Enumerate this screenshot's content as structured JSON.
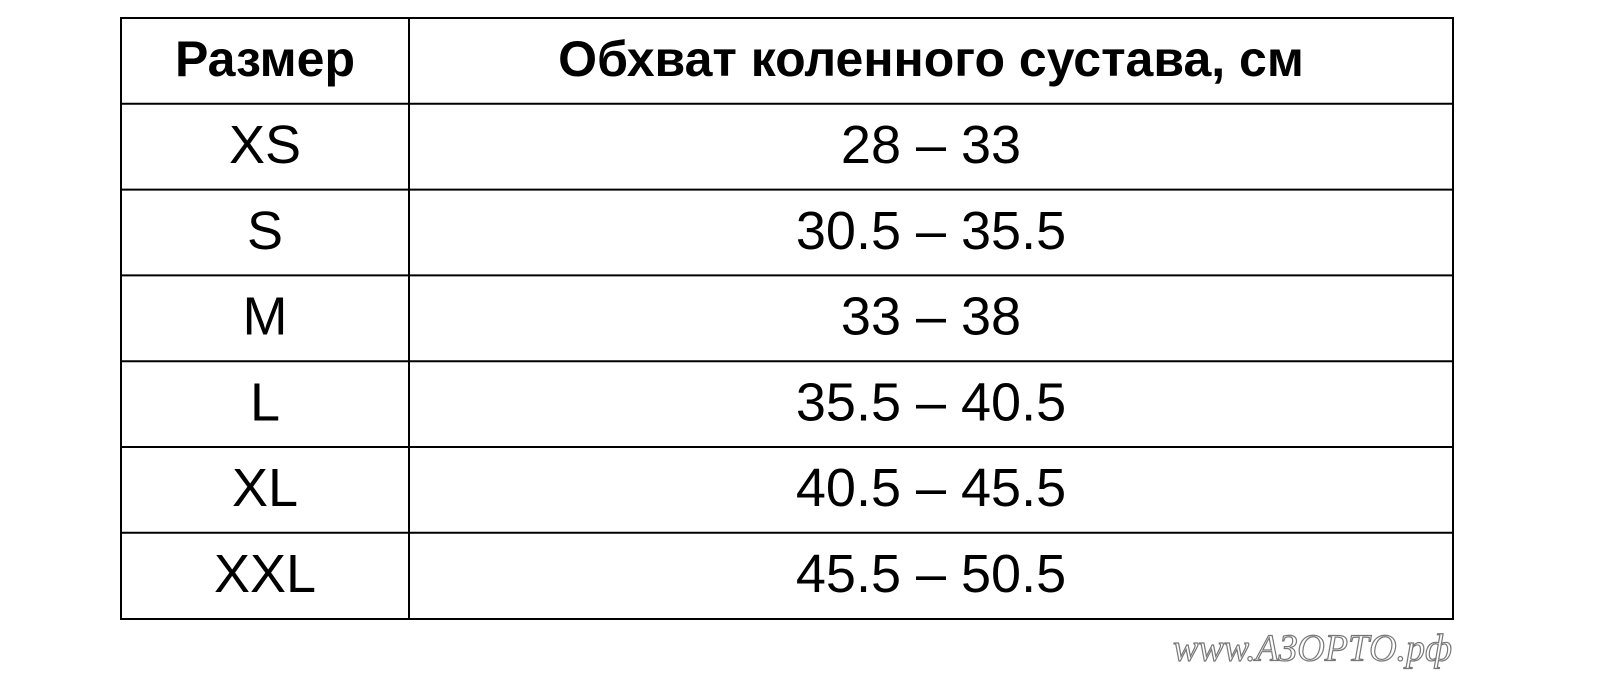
{
  "table": {
    "header": [
      "Размер",
      "Обхват коленного сустава, см"
    ],
    "rows": [
      [
        "XS",
        "28 – 33"
      ],
      [
        "S",
        "30.5 – 35.5"
      ],
      [
        "M",
        "33 – 38"
      ],
      [
        "L",
        "35.5 – 40.5"
      ],
      [
        "XL",
        "40.5 – 45.5"
      ],
      [
        "XXL",
        "45.5 – 50.5"
      ]
    ]
  },
  "watermark": "www.АЗОРТО.рф"
}
